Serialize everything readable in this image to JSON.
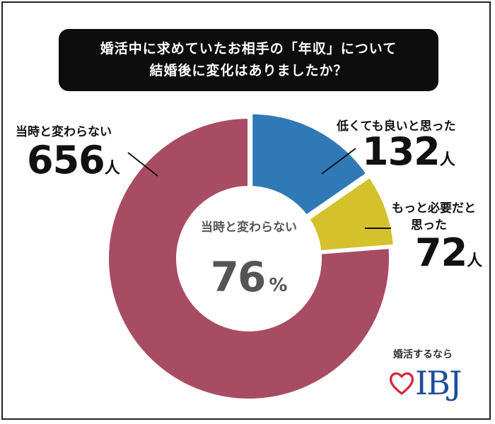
{
  "title": {
    "line1": "婚活中に求めていたお相手の「年収」について",
    "line2": "結婚後に変化はありましたか？"
  },
  "chart_data": {
    "type": "pie",
    "categories": [
      "低くても良いと思った",
      "もっと必要だと思った",
      "当時と変わらない"
    ],
    "values": [
      132,
      72,
      656
    ],
    "colors": [
      "#2f7ab6",
      "#d4c12c",
      "#a84c63"
    ],
    "center_label": "当時と変わらない",
    "center_value": "76",
    "center_unit": "%"
  },
  "labels": {
    "low": {
      "name": "低くても良いと思った",
      "count": "132",
      "unit": "人"
    },
    "more_line1": "もっと必要だと",
    "more_line2": "思った",
    "more_count": "72",
    "more_unit": "人",
    "same": {
      "name": "当時と変わらない",
      "count": "656",
      "unit": "人"
    }
  },
  "logo": {
    "tagline": "婚活するなら",
    "brand": "IBJ",
    "heart_color": "#d6243a",
    "brand_color": "#1d4e9c"
  }
}
